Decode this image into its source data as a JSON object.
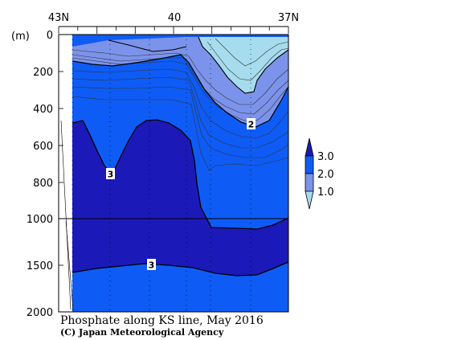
{
  "chart_data": {
    "type": "contour",
    "title": "Phosphate along KS line, May 2016",
    "credit": "(C) Japan Meteorological Agency",
    "ylabel": "(m)",
    "ylim": [
      2000,
      0
    ],
    "y_break_depth": 1000,
    "y_ticks_upper": [
      0,
      200,
      400,
      600,
      800,
      1000
    ],
    "y_ticks_lower": [
      1500,
      2000
    ],
    "x_axis": {
      "label_values": [
        43,
        40,
        37
      ],
      "tick_labels": [
        "43N",
        "40",
        "37N"
      ]
    },
    "contour_levels": [
      1.0,
      2.0,
      3.0
    ],
    "contour_labels": [
      {
        "text": "2",
        "lat": 37.6,
        "depth": 480
      },
      {
        "text": "3",
        "lat": 41.9,
        "depth": 760
      },
      {
        "text": "3",
        "lat": 41.0,
        "depth": 1490
      }
    ],
    "legend": {
      "placement": "right",
      "labels": [
        "3.0",
        "2.0",
        "1.0"
      ],
      "colors": [
        "#1c19b9",
        "#0e5cf5",
        "#7c93eb",
        "#a6dcee"
      ]
    },
    "colors": {
      "low": "#a6dcee",
      "mid_low": "#7c93eb",
      "mid": "#0e5cf5",
      "high": "#1c19b9"
    }
  }
}
